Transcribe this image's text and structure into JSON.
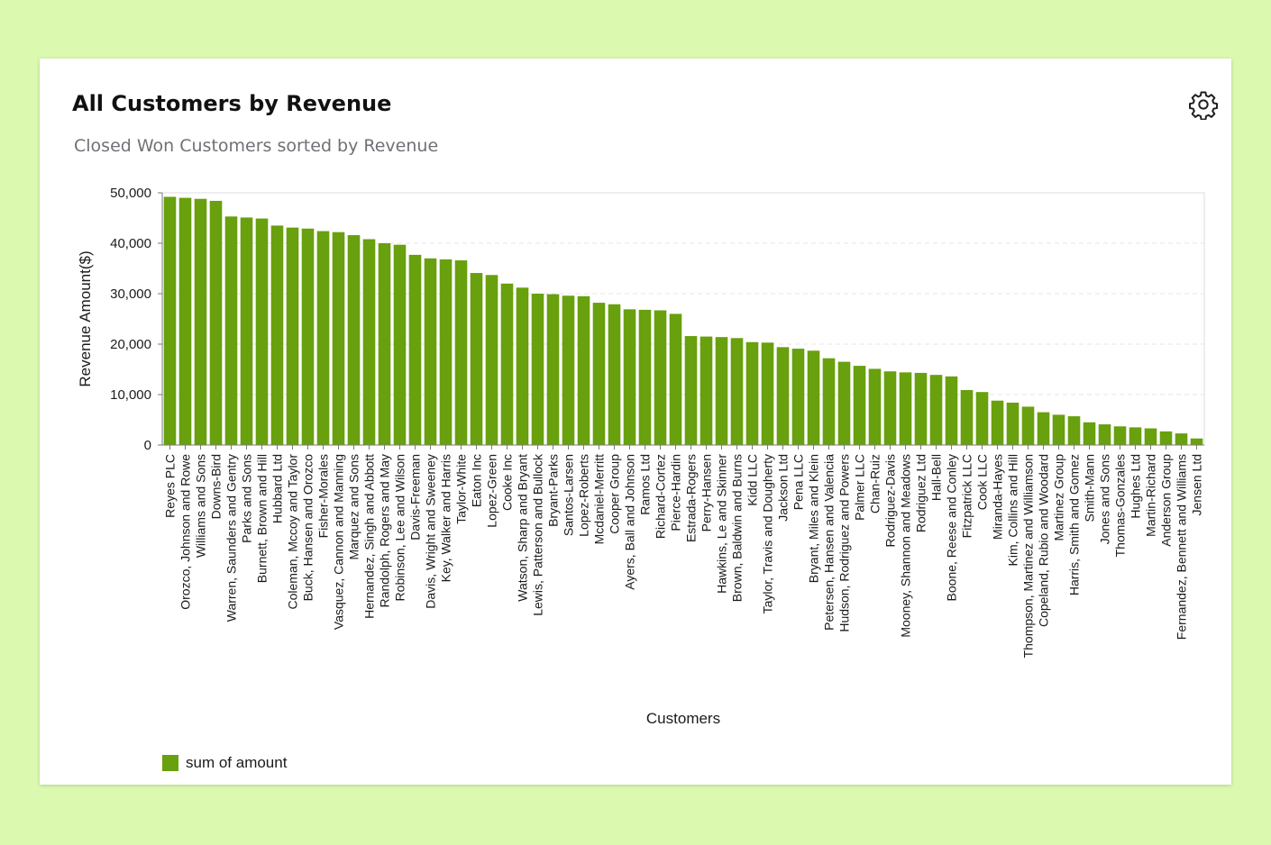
{
  "card": {
    "title": "All Customers by Revenue",
    "subtitle": "Closed Won Customers sorted by Revenue",
    "settings_icon": "gear-icon"
  },
  "colors": {
    "page_background": "#dcf9b0",
    "bar": "#68a00e"
  },
  "legend": {
    "label": "sum of amount"
  },
  "chart_data": {
    "type": "bar",
    "title": "All Customers by Revenue",
    "subtitle": "Closed Won Customers sorted by Revenue",
    "xlabel": "Customers",
    "ylabel": "Revenue Amount($)",
    "ylim": [
      0,
      50000
    ],
    "yticks": [
      0,
      10000,
      20000,
      30000,
      40000,
      50000
    ],
    "ytick_labels": [
      "0",
      "10,000",
      "20,000",
      "30,000",
      "40,000",
      "50,000"
    ],
    "grid": true,
    "legend_position": "bottom-left",
    "series": [
      {
        "name": "sum of amount",
        "categories": [
          "Reyes PLC",
          "Orozco, Johnson and Rowe",
          "Williams and Sons",
          "Downs-Bird",
          "Warren, Saunders and Gentry",
          "Parks and Sons",
          "Burnett, Brown and Hill",
          "Hubbard Ltd",
          "Coleman, Mccoy and Taylor",
          "Buck, Hansen and Orozco",
          "Fisher-Morales",
          "Vasquez, Cannon and Manning",
          "Marquez and Sons",
          "Hernandez, Singh and Abbott",
          "Randolph, Rogers and May",
          "Robinson, Lee and Wilson",
          "Davis-Freeman",
          "Davis, Wright and Sweeney",
          "Key, Walker and Harris",
          "Taylor-White",
          "Eaton Inc",
          "Lopez-Green",
          "Cooke Inc",
          "Watson, Sharp and Bryant",
          "Lewis, Patterson and Bullock",
          "Bryant-Parks",
          "Santos-Larsen",
          "Lopez-Roberts",
          "Mcdaniel-Merritt",
          "Cooper Group",
          "Ayers, Ball and Johnson",
          "Ramos Ltd",
          "Richard-Cortez",
          "Pierce-Hardin",
          "Estrada-Rogers",
          "Perry-Hansen",
          "Hawkins, Le and Skinner",
          "Brown, Baldwin and Burns",
          "Kidd LLC",
          "Taylor, Travis and Dougherty",
          "Jackson Ltd",
          "Pena LLC",
          "Bryant, Miles and Klein",
          "Petersen, Hansen and Valencia",
          "Hudson, Rodriguez and Powers",
          "Palmer LLC",
          "Chan-Ruiz",
          "Rodriguez-Davis",
          "Mooney, Shannon and Meadows",
          "Rodriguez Ltd",
          "Hall-Bell",
          "Boone, Reese and Conley",
          "Fitzpatrick LLC",
          "Cook LLC",
          "Miranda-Hayes",
          "Kim, Collins and Hill",
          "Thompson, Martinez and Williamson",
          "Copeland, Rubio and Woodard",
          "Martinez Group",
          "Harris, Smith and Gomez",
          "Smith-Mann",
          "Jones and Sons",
          "Thomas-Gonzales",
          "Hughes Ltd",
          "Martin-Richard",
          "Anderson Group",
          "Fernandez, Bennett and Williams",
          "Jensen Ltd"
        ],
        "values": [
          49200,
          49000,
          48800,
          48400,
          45300,
          45100,
          44900,
          43500,
          43100,
          42900,
          42400,
          42200,
          41600,
          40800,
          40000,
          39700,
          37700,
          37000,
          36800,
          36600,
          34100,
          33700,
          32000,
          31200,
          30000,
          29900,
          29600,
          29500,
          28200,
          27900,
          26900,
          26800,
          26700,
          26000,
          21600,
          21500,
          21400,
          21200,
          20400,
          20300,
          19400,
          19100,
          18700,
          17200,
          16500,
          15700,
          15100,
          14600,
          14400,
          14300,
          13900,
          13600,
          10900,
          10500,
          8800,
          8400,
          7600,
          6500,
          6000,
          5700,
          4500,
          4100,
          3700,
          3500,
          3300,
          2700,
          2300,
          1300
        ]
      }
    ]
  }
}
